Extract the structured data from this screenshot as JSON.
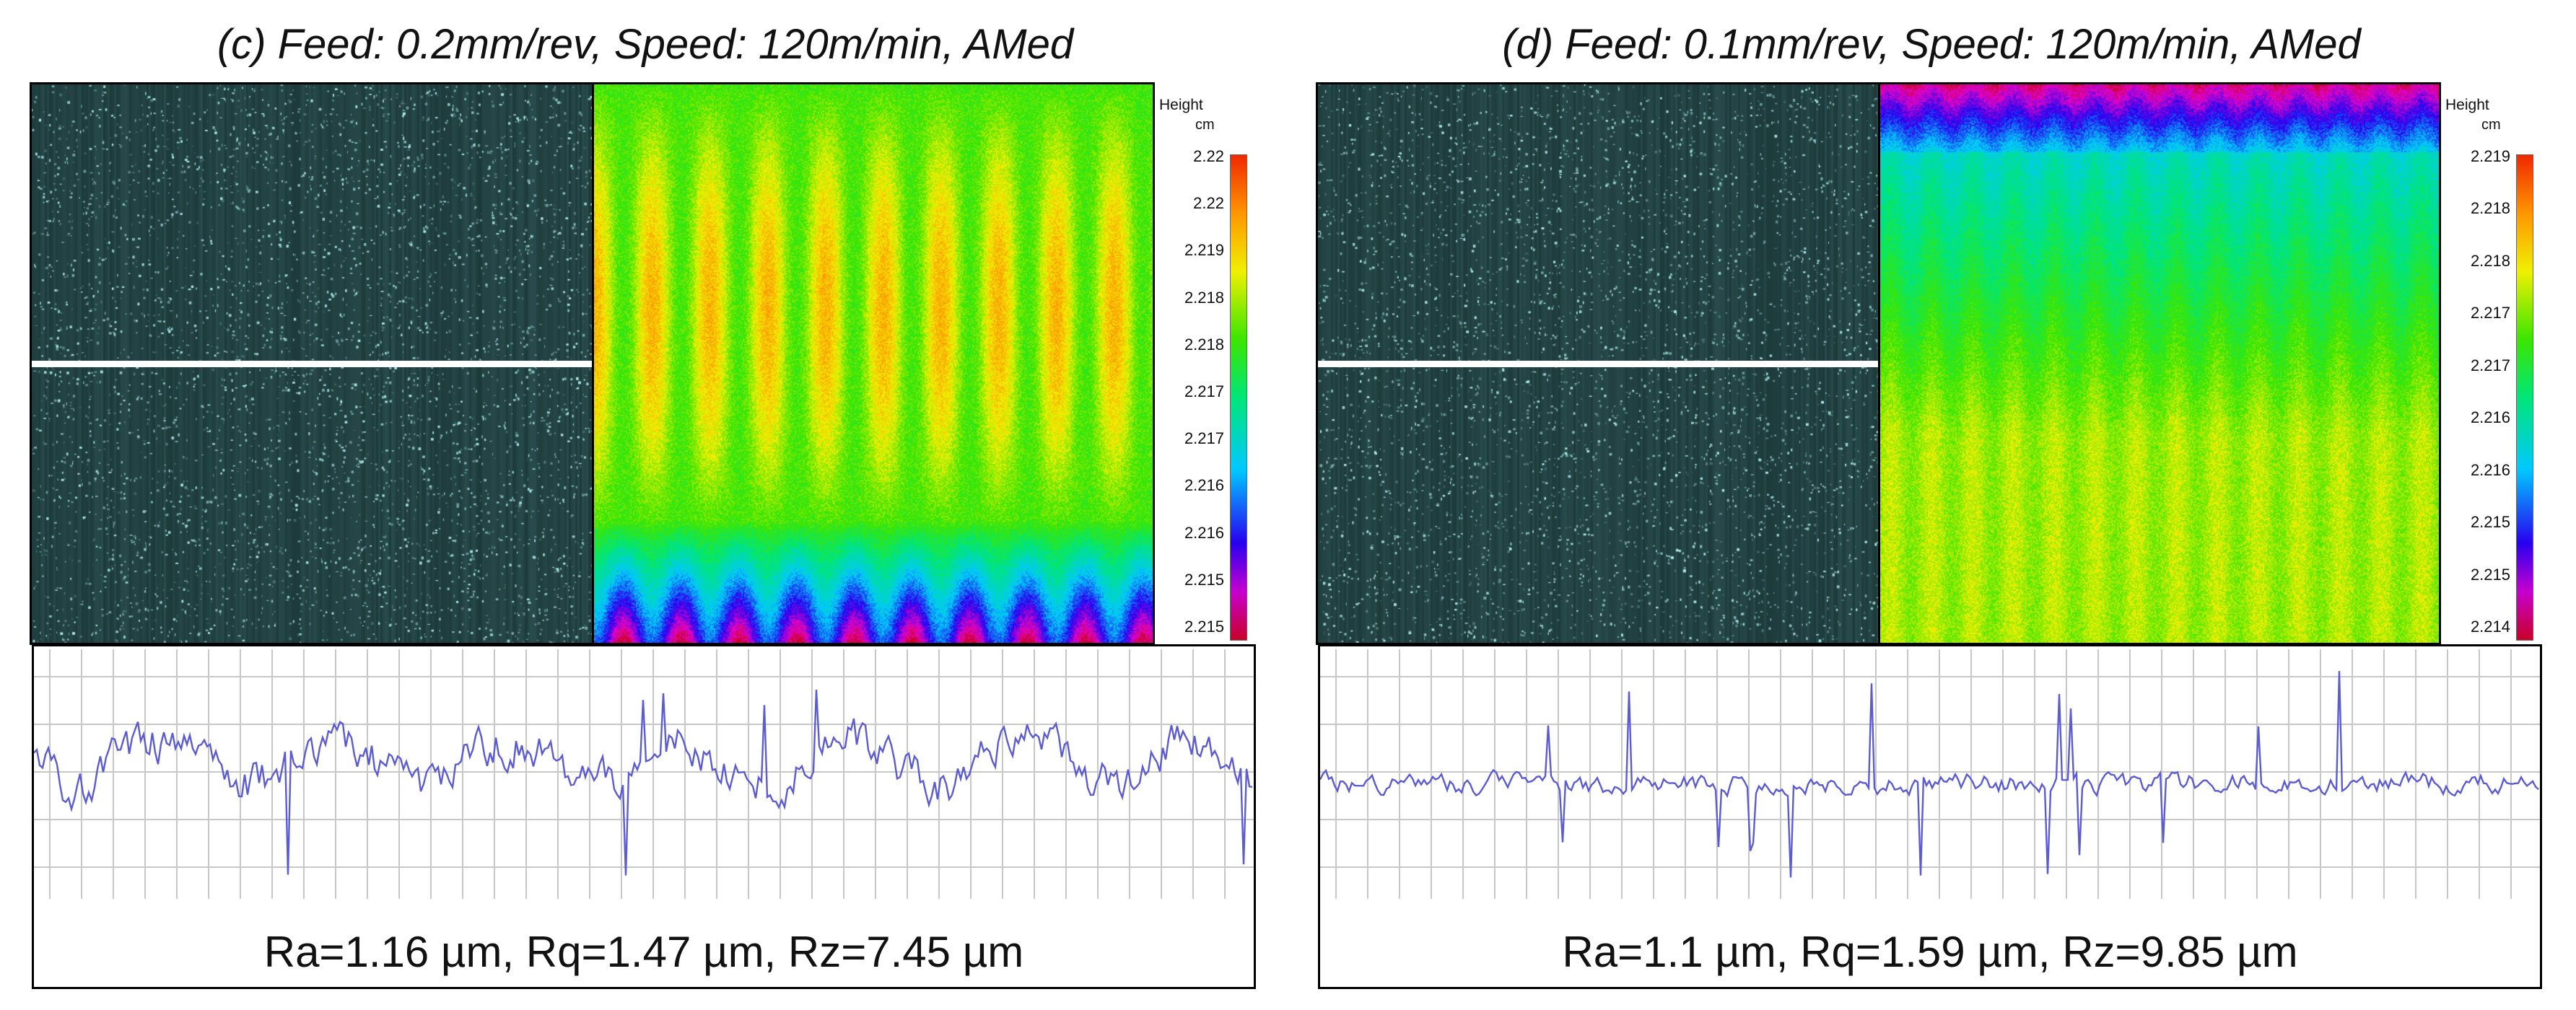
{
  "colors": {
    "profile_line": "#5b5bd6",
    "grid": "#c8c8c8",
    "scan_line": "#ffffff"
  },
  "panels": [
    {
      "id": "c",
      "title": "(c) Feed: 0.2mm/rev, Speed: 120m/min, AMed",
      "scale_title": "Height",
      "scale_unit": "cm",
      "scale_ticks": [
        "2.22",
        "2.22",
        "2.219",
        "2.218",
        "2.218",
        "2.217",
        "2.217",
        "2.216",
        "2.216",
        "2.215",
        "2.215"
      ],
      "roughness": "Ra=1.16 µm, Rq=1.47 µm, Rz=7.45 µm"
    },
    {
      "id": "d",
      "title": "(d) Feed: 0.1mm/rev, Speed: 120m/min, AMed",
      "scale_title": "Height",
      "scale_unit": "cm",
      "scale_ticks": [
        "2.219",
        "2.218",
        "2.218",
        "2.217",
        "2.217",
        "2.216",
        "2.216",
        "2.215",
        "2.215",
        "2.214"
      ],
      "roughness": "Ra=1.1 µm, Rq=1.59 µm, Rz=9.85 µm"
    }
  ]
}
